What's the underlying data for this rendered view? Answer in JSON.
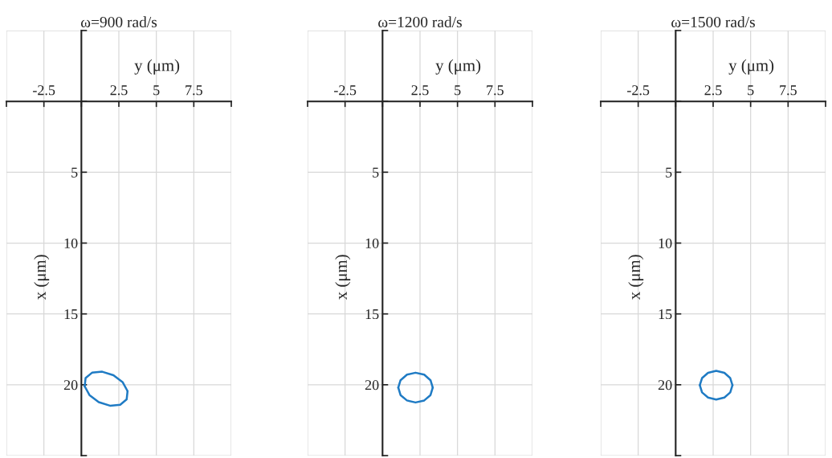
{
  "chart_data": [
    {
      "type": "line",
      "title": "ω=900 rad/s",
      "xlabel": "y (μm)",
      "ylabel": "x (μm)",
      "xlim": [
        -5,
        10
      ],
      "ylim": [
        25,
        -5
      ],
      "xticks": [
        {
          "value": -5,
          "label": null
        },
        -2.5,
        {
          "value": 0,
          "label": null
        },
        2.5,
        5,
        7.5,
        {
          "value": 10,
          "label": null
        }
      ],
      "yticks": [
        {
          "value": -5,
          "label": null
        },
        {
          "value": 0,
          "label": null
        },
        5,
        10,
        15,
        20,
        {
          "value": 25,
          "label": null
        }
      ],
      "grid": true,
      "series": [
        {
          "color": "#1f7bc4",
          "x": [
            0.22,
            0.28,
            0.71,
            1.39,
            2.14,
            2.76,
            3.08
          ],
          "values": [
            20.11,
            19.53,
            19.15,
            19.08,
            19.33,
            19.83,
            20.45
          ]
        },
        {
          "color": "#1f7bc4",
          "x": [
            0.22,
            0.54,
            1.16,
            1.91,
            2.59,
            3.02,
            3.08
          ],
          "values": [
            20.11,
            20.73,
            21.23,
            21.48,
            21.41,
            21.03,
            20.45
          ]
        }
      ]
    },
    {
      "type": "line",
      "title": "ω=1200 rad/s",
      "xlabel": "y (μm)",
      "ylabel": "x (μm)",
      "xlim": [
        -5,
        10
      ],
      "ylim": [
        25,
        -5
      ],
      "xticks": [
        {
          "value": -5,
          "label": null
        },
        -2.5,
        {
          "value": 0,
          "label": null
        },
        2.5,
        5,
        7.5,
        {
          "value": 10,
          "label": null
        }
      ],
      "yticks": [
        {
          "value": -5,
          "label": null
        },
        {
          "value": 0,
          "label": null
        },
        5,
        10,
        15,
        20,
        {
          "value": 25,
          "label": null
        }
      ],
      "grid": true,
      "series": [
        {
          "color": "#1f7bc4",
          "x": [
            1.05,
            1.2,
            1.63,
            2.2,
            2.78,
            3.2,
            3.35
          ],
          "values": [
            20.2,
            19.68,
            19.29,
            19.15,
            19.29,
            19.68,
            20.2
          ]
        },
        {
          "color": "#1f7bc4",
          "x": [
            1.05,
            1.2,
            1.63,
            2.2,
            2.78,
            3.2,
            3.35
          ],
          "values": [
            20.2,
            20.73,
            21.11,
            21.25,
            21.11,
            20.73,
            20.2
          ]
        }
      ]
    },
    {
      "type": "line",
      "title": "ω=1500 rad/s",
      "xlabel": "y (μm)",
      "ylabel": "x (μm)",
      "xlim": [
        -5,
        10
      ],
      "ylim": [
        25,
        -5
      ],
      "xticks": [
        {
          "value": -5,
          "label": null
        },
        -2.5,
        {
          "value": 0,
          "label": null
        },
        2.5,
        5,
        7.5,
        {
          "value": 10,
          "label": null
        }
      ],
      "yticks": [
        {
          "value": -5,
          "label": null
        },
        {
          "value": 0,
          "label": null
        },
        5,
        10,
        15,
        20,
        {
          "value": 25,
          "label": null
        }
      ],
      "grid": true,
      "series": [
        {
          "color": "#1f7bc4",
          "x": [
            1.61,
            1.76,
            2.16,
            2.7,
            3.25,
            3.64,
            3.79
          ],
          "values": [
            20.03,
            19.53,
            19.16,
            19.02,
            19.16,
            19.53,
            20.03
          ]
        },
        {
          "color": "#1f7bc4",
          "x": [
            1.61,
            1.76,
            2.16,
            2.7,
            3.25,
            3.64,
            3.79
          ],
          "values": [
            20.03,
            20.54,
            20.9,
            21.04,
            20.9,
            20.54,
            20.03
          ]
        }
      ]
    }
  ]
}
